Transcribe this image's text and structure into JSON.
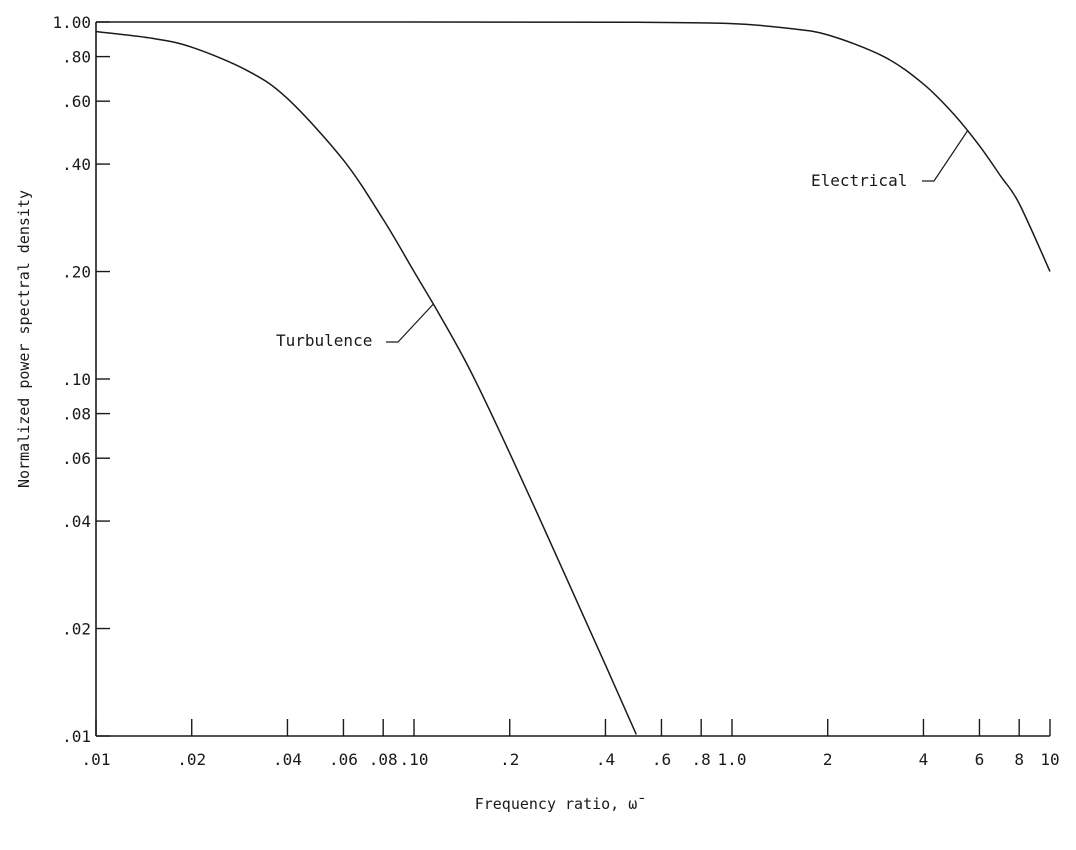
{
  "chart_data": {
    "type": "line",
    "xscale": "log",
    "yscale": "log",
    "xlim": [
      0.01,
      10
    ],
    "ylim": [
      0.01,
      1.0
    ],
    "grid": false,
    "xlabel": "Frequency ratio, ω̄",
    "ylabel": "Normalized power spectral density",
    "xticks": [
      {
        "value": 0.01,
        "label": ".01"
      },
      {
        "value": 0.02,
        "label": ".02"
      },
      {
        "value": 0.04,
        "label": ".04"
      },
      {
        "value": 0.06,
        "label": ".06"
      },
      {
        "value": 0.08,
        "label": ".08"
      },
      {
        "value": 0.1,
        "label": ".10"
      },
      {
        "value": 0.2,
        "label": ".2"
      },
      {
        "value": 0.4,
        "label": ".4"
      },
      {
        "value": 0.6,
        "label": ".6"
      },
      {
        "value": 0.8,
        "label": ".8"
      },
      {
        "value": 1.0,
        "label": "1.0"
      },
      {
        "value": 2,
        "label": "2"
      },
      {
        "value": 4,
        "label": "4"
      },
      {
        "value": 6,
        "label": "6"
      },
      {
        "value": 8,
        "label": "8"
      },
      {
        "value": 10,
        "label": "10"
      }
    ],
    "yticks": [
      {
        "value": 0.01,
        "label": ".01"
      },
      {
        "value": 0.02,
        "label": ".02"
      },
      {
        "value": 0.04,
        "label": ".04"
      },
      {
        "value": 0.06,
        "label": ".06"
      },
      {
        "value": 0.08,
        "label": ".08"
      },
      {
        "value": 0.1,
        "label": ".10"
      },
      {
        "value": 0.2,
        "label": ".20"
      },
      {
        "value": 0.4,
        "label": ".40"
      },
      {
        "value": 0.6,
        "label": ".60"
      },
      {
        "value": 0.8,
        "label": ".80"
      },
      {
        "value": 1.0,
        "label": "1.00"
      }
    ],
    "series": [
      {
        "name": "Turbulence",
        "x": [
          0.01,
          0.015,
          0.02,
          0.03,
          0.04,
          0.06,
          0.08,
          0.1,
          0.12,
          0.15,
          0.2,
          0.3,
          0.4,
          0.5
        ],
        "y": [
          0.94,
          0.9,
          0.85,
          0.73,
          0.61,
          0.41,
          0.28,
          0.2,
          0.152,
          0.106,
          0.062,
          0.028,
          0.0158,
          0.0101
        ]
      },
      {
        "name": "Electrical",
        "x": [
          0.01,
          0.1,
          0.5,
          1.0,
          1.5,
          2,
          3,
          4,
          5,
          6,
          7,
          8,
          10
        ],
        "y": [
          1.0,
          1.0,
          0.998,
          0.99,
          0.96,
          0.92,
          0.8,
          0.67,
          0.55,
          0.45,
          0.37,
          0.31,
          0.2
        ]
      }
    ],
    "annotations": [
      {
        "text": "Turbulence",
        "series": "Turbulence",
        "at_x": 0.115
      },
      {
        "text": "Electrical",
        "series": "Electrical",
        "at_x": 5.5
      }
    ]
  }
}
